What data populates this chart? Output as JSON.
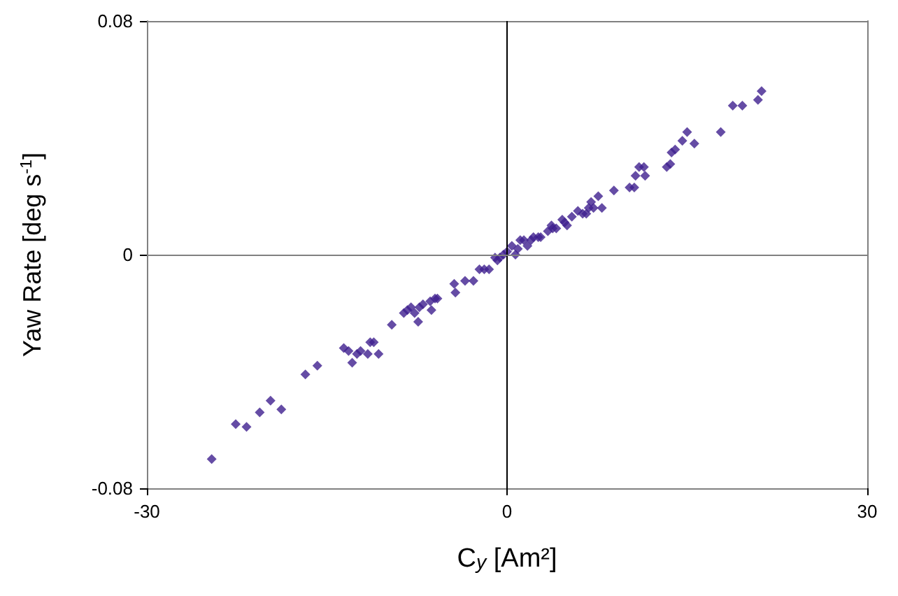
{
  "chart_data": {
    "type": "scatter",
    "xlabel": "C$_{y}$ [Am²]",
    "ylabel": "Yaw Rate [deg s$^{-1}$]",
    "xlim": [
      -30,
      30
    ],
    "xticks": [
      -30,
      0,
      30
    ],
    "ylim": [
      -0.08,
      0.08
    ],
    "yticks": [
      -0.08,
      0,
      0.08
    ],
    "marker": "diamond",
    "ref_lines": [
      {
        "axis": "x",
        "value": 0,
        "color": "#000000"
      },
      {
        "axis": "y",
        "value": 0,
        "color": "#808080"
      }
    ],
    "series": [
      {
        "color": "#3f1f8f",
        "x": [
          -24.6,
          -22.6,
          -21.7,
          -20.6,
          -19.7,
          -18.8,
          -16.8,
          -15.8,
          -13.6,
          -13.2,
          -12.9,
          -12.5,
          -12.2,
          -11.6,
          -11.4,
          -11.1,
          -10.7,
          -9.6,
          -8.6,
          -8.3,
          -8.0,
          -7.7,
          -7.4,
          -7.3,
          -7.0,
          -6.4,
          -6.0,
          -5.8,
          -6.3,
          -4.4,
          -4.3,
          -3.5,
          -2.8,
          -2.3,
          -1.9,
          -1.5,
          -1.0,
          -0.8,
          -0.6,
          -0.3,
          0,
          0.4,
          0.7,
          0.9,
          1.1,
          1.4,
          1.7,
          2.0,
          2.2,
          2.6,
          2.8,
          3.4,
          3.7,
          3.8,
          4.1,
          4.6,
          4.8,
          5.0,
          5.4,
          5.9,
          6.3,
          6.6,
          6.8,
          7.0,
          7.2,
          7.6,
          7.9,
          8.9,
          10.2,
          10.6,
          10.7,
          11.0,
          11.4,
          11.5,
          13.3,
          13.6,
          13.7,
          14.0,
          14.6,
          15.0,
          15.6,
          17.8,
          18.8,
          19.6,
          20.9,
          21.2
        ],
        "values": [
          -0.07,
          -0.058,
          -0.059,
          -0.054,
          -0.05,
          -0.053,
          -0.041,
          -0.038,
          -0.032,
          -0.033,
          -0.037,
          -0.034,
          -0.033,
          -0.034,
          -0.03,
          -0.03,
          -0.034,
          -0.024,
          -0.02,
          -0.019,
          -0.018,
          -0.02,
          -0.023,
          -0.018,
          -0.017,
          -0.016,
          -0.015,
          -0.015,
          -0.019,
          -0.01,
          -0.013,
          -0.009,
          -0.009,
          -0.005,
          -0.005,
          -0.005,
          -0.001,
          -0.002,
          -0.001,
          0,
          0.001,
          0.003,
          0.0,
          0.002,
          0.005,
          0.005,
          0.003,
          0.005,
          0.006,
          0.006,
          0.006,
          0.008,
          0.01,
          0.009,
          0.009,
          0.012,
          0.011,
          0.01,
          0.013,
          0.015,
          0.014,
          0.014,
          0.016,
          0.018,
          0.016,
          0.02,
          0.016,
          0.022,
          0.023,
          0.023,
          0.027,
          0.03,
          0.03,
          0.027,
          0.03,
          0.031,
          0.035,
          0.036,
          0.039,
          0.042,
          0.038,
          0.042,
          0.051,
          0.051,
          0.053,
          0.056
        ]
      }
    ]
  }
}
